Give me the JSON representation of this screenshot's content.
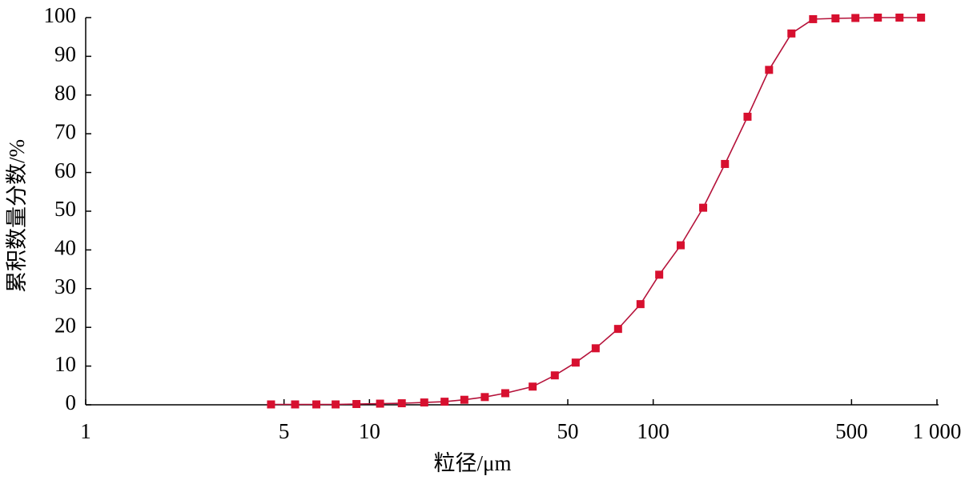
{
  "chart_data": {
    "type": "line",
    "xlabel": "粒径/μm",
    "ylabel": "累积数量分数/%",
    "xscale": "log",
    "x": [
      4.5,
      5.47,
      6.5,
      7.6,
      9.0,
      10.9,
      13.0,
      15.6,
      18.4,
      21.6,
      25.5,
      30.1,
      37.6,
      45.0,
      53.3,
      62.7,
      75.2,
      90.2,
      105,
      125,
      150,
      179,
      215,
      256,
      307,
      366,
      439,
      516,
      619,
      738,
      879
    ],
    "values": [
      0.1,
      0.1,
      0.1,
      0.1,
      0.2,
      0.3,
      0.4,
      0.6,
      0.8,
      1.3,
      2.0,
      3.0,
      4.7,
      7.6,
      10.9,
      14.6,
      19.6,
      26.0,
      33.6,
      41.2,
      50.9,
      62.2,
      74.4,
      86.5,
      95.9,
      99.6,
      99.8,
      99.9,
      100,
      100,
      100
    ],
    "color": "#d7102f",
    "line_color": "#b5123a",
    "xlim": [
      1,
      1000
    ],
    "xticks": [
      1,
      5,
      10,
      50,
      100,
      500,
      {
        "value": 1000,
        "label": "1 000"
      }
    ],
    "ylim": [
      0,
      100
    ],
    "yticks": [
      0,
      10,
      20,
      30,
      40,
      50,
      60,
      70,
      80,
      90,
      100
    ]
  }
}
